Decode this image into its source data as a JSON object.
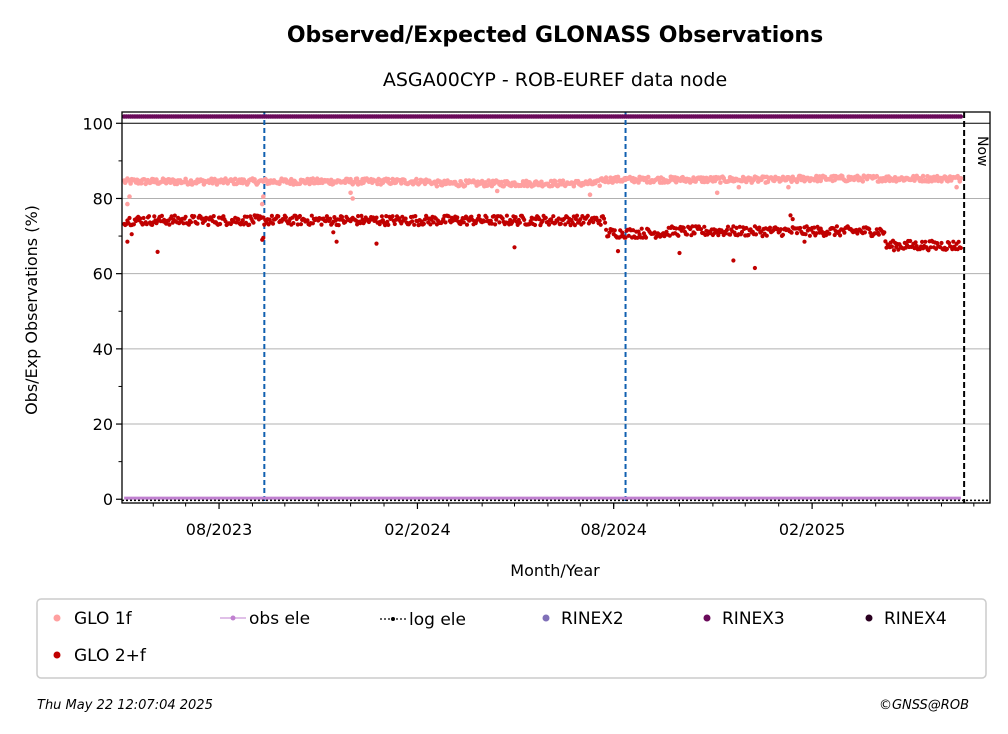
{
  "chart_data": {
    "type": "scatter",
    "title": "Observed/Expected GLONASS Observations",
    "subtitle": "ASGA00CYP - ROB-EUREF data node",
    "xlabel": "Month/Year",
    "ylabel": "Obs/Exp Observations (%)",
    "x_range": [
      "2023-05-03",
      "2025-07-16"
    ],
    "ylim": [
      -1,
      103
    ],
    "y_ticks": [
      0,
      20,
      40,
      60,
      80,
      100
    ],
    "x_ticks": [
      {
        "date": "2023-08-01",
        "label": "08/2023"
      },
      {
        "date": "2024-02-01",
        "label": "02/2024"
      },
      {
        "date": "2024-08-01",
        "label": "08/2024"
      },
      {
        "date": "2025-02-01",
        "label": "02/2025"
      }
    ],
    "grid": true,
    "now_label": "Now",
    "now_date": "2025-06-22",
    "event_dates": [
      "2023-09-12",
      "2024-08-12"
    ],
    "data_start": "2023-05-05",
    "data_end": "2025-06-19",
    "series": [
      {
        "name": "GLO 1f",
        "color": "#ffa0a0",
        "segments": [
          {
            "from": "2023-05-05",
            "to": "2024-02-15",
            "y": 84.5
          },
          {
            "from": "2024-02-15",
            "to": "2024-07-20",
            "y": 84.0
          },
          {
            "from": "2024-07-20",
            "to": "2025-01-20",
            "y": 85.0
          },
          {
            "from": "2025-01-20",
            "to": "2025-06-19",
            "y": 85.3
          }
        ],
        "outliers": [
          {
            "x": "2023-05-08",
            "y": 78.5
          },
          {
            "x": "2023-05-10",
            "y": 80.5
          },
          {
            "x": "2023-09-10",
            "y": 78.5
          },
          {
            "x": "2023-09-11",
            "y": 80.5
          },
          {
            "x": "2023-12-01",
            "y": 81.5
          },
          {
            "x": "2023-12-03",
            "y": 80.0
          },
          {
            "x": "2024-04-15",
            "y": 82.0
          },
          {
            "x": "2024-07-10",
            "y": 81.0
          },
          {
            "x": "2024-11-05",
            "y": 81.5
          },
          {
            "x": "2024-11-25",
            "y": 83.0
          },
          {
            "x": "2025-01-10",
            "y": 83.0
          },
          {
            "x": "2025-06-15",
            "y": 83.0
          }
        ]
      },
      {
        "name": "GLO 2+f",
        "color": "#c00000",
        "segments": [
          {
            "from": "2023-05-05",
            "to": "2024-07-25",
            "y": 74.2
          },
          {
            "from": "2024-07-25",
            "to": "2024-09-20",
            "y": 70.8
          },
          {
            "from": "2024-09-20",
            "to": "2025-04-10",
            "y": 71.3
          },
          {
            "from": "2025-04-10",
            "to": "2025-06-19",
            "y": 67.5
          }
        ],
        "outliers": [
          {
            "x": "2023-05-08",
            "y": 68.5
          },
          {
            "x": "2023-05-12",
            "y": 70.5
          },
          {
            "x": "2023-06-05",
            "y": 65.8
          },
          {
            "x": "2023-09-10",
            "y": 69.0
          },
          {
            "x": "2023-09-11",
            "y": 69.5
          },
          {
            "x": "2023-11-15",
            "y": 71.0
          },
          {
            "x": "2023-11-18",
            "y": 68.5
          },
          {
            "x": "2023-12-25",
            "y": 68.0
          },
          {
            "x": "2024-05-01",
            "y": 67.0
          },
          {
            "x": "2024-08-05",
            "y": 66.0
          },
          {
            "x": "2024-10-01",
            "y": 65.5
          },
          {
            "x": "2024-11-20",
            "y": 63.5
          },
          {
            "x": "2024-12-10",
            "y": 61.5
          },
          {
            "x": "2025-01-12",
            "y": 75.5
          },
          {
            "x": "2025-01-14",
            "y": 74.5
          },
          {
            "x": "2025-01-25",
            "y": 68.5
          }
        ]
      },
      {
        "name": "obs ele",
        "color": "#c080d0",
        "y": 0.3
      },
      {
        "name": "log ele",
        "color": "#000000",
        "y": -0.3
      },
      {
        "name": "RINEX2",
        "color": "#8070b8"
      },
      {
        "name": "RINEX3",
        "color": "#6a0a5a",
        "y": 101.8
      },
      {
        "name": "RINEX4",
        "color": "#2a0020"
      }
    ]
  },
  "footer": {
    "timestamp": "Thu May 22 12:07:04 2025",
    "credit": "©GNSS@ROB"
  }
}
